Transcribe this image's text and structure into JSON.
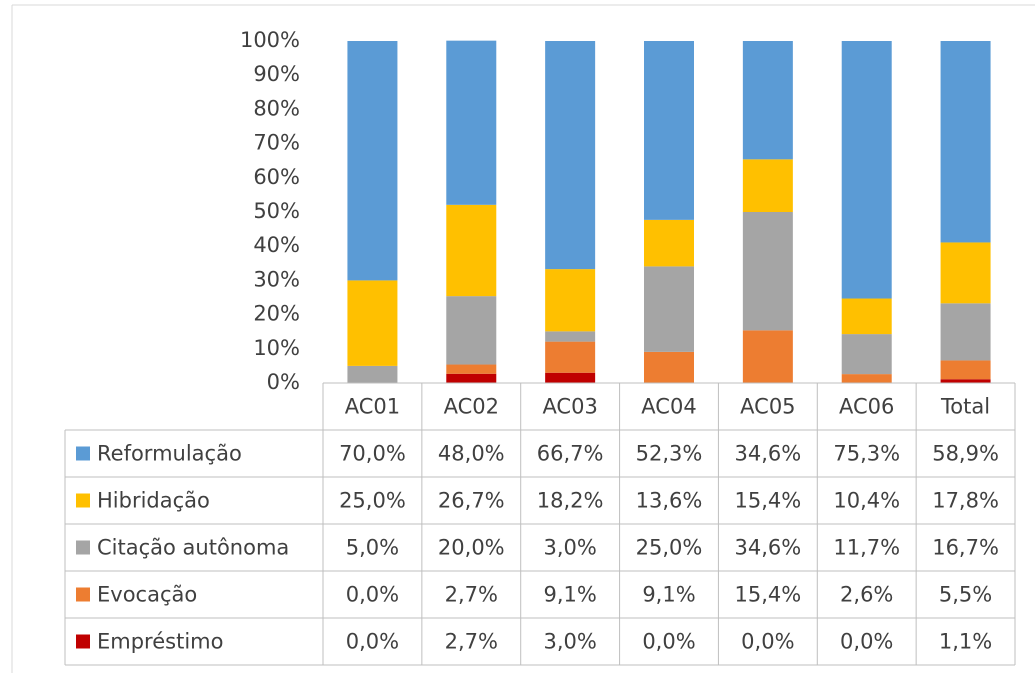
{
  "chart_data": {
    "type": "stacked_bar",
    "categories": [
      "AC01",
      "AC02",
      "AC03",
      "AC04",
      "AC05",
      "AC06",
      "Total"
    ],
    "series": [
      {
        "name": "Reformulação",
        "color": "#5b9bd5",
        "values": [
          70.0,
          48.0,
          66.7,
          52.3,
          34.6,
          75.3,
          58.9
        ],
        "value_labels": [
          "70,0%",
          "48,0%",
          "66,7%",
          "52,3%",
          "34,6%",
          "75,3%",
          "58,9%"
        ]
      },
      {
        "name": "Hibridação",
        "color": "#ffc000",
        "values": [
          25.0,
          26.7,
          18.2,
          13.6,
          15.4,
          10.4,
          17.8
        ],
        "value_labels": [
          "25,0%",
          "26,7%",
          "18,2%",
          "13,6%",
          "15,4%",
          "10,4%",
          "17,8%"
        ]
      },
      {
        "name": "Citação autônoma",
        "color": "#a5a5a5",
        "values": [
          5.0,
          20.0,
          3.0,
          25.0,
          34.6,
          11.7,
          16.7
        ],
        "value_labels": [
          "5,0%",
          "20,0%",
          "3,0%",
          "25,0%",
          "34,6%",
          "11,7%",
          "16,7%"
        ]
      },
      {
        "name": "Evocação",
        "color": "#ed7d31",
        "values": [
          0.0,
          2.7,
          9.1,
          9.1,
          15.4,
          2.6,
          5.5
        ],
        "value_labels": [
          "0,0%",
          "2,7%",
          "9,1%",
          "9,1%",
          "15,4%",
          "2,6%",
          "5,5%"
        ]
      },
      {
        "name": "Empréstimo",
        "color": "#c00000",
        "values": [
          0.0,
          2.7,
          3.0,
          0.0,
          0.0,
          0.0,
          1.1
        ],
        "value_labels": [
          "0,0%",
          "2,7%",
          "3,0%",
          "0,0%",
          "0,0%",
          "0,0%",
          "1,1%"
        ]
      }
    ],
    "ylim": [
      0,
      100
    ],
    "yticks": [
      {
        "value": 0,
        "label": "0%"
      },
      {
        "value": 10,
        "label": "10%"
      },
      {
        "value": 20,
        "label": "20%"
      },
      {
        "value": 30,
        "label": "30%"
      },
      {
        "value": 40,
        "label": "40%"
      },
      {
        "value": 50,
        "label": "50%"
      },
      {
        "value": 60,
        "label": "60%"
      },
      {
        "value": 70,
        "label": "70%"
      },
      {
        "value": 80,
        "label": "80%"
      },
      {
        "value": 90,
        "label": "90%"
      },
      {
        "value": 100,
        "label": "100%"
      }
    ],
    "grid": false
  }
}
